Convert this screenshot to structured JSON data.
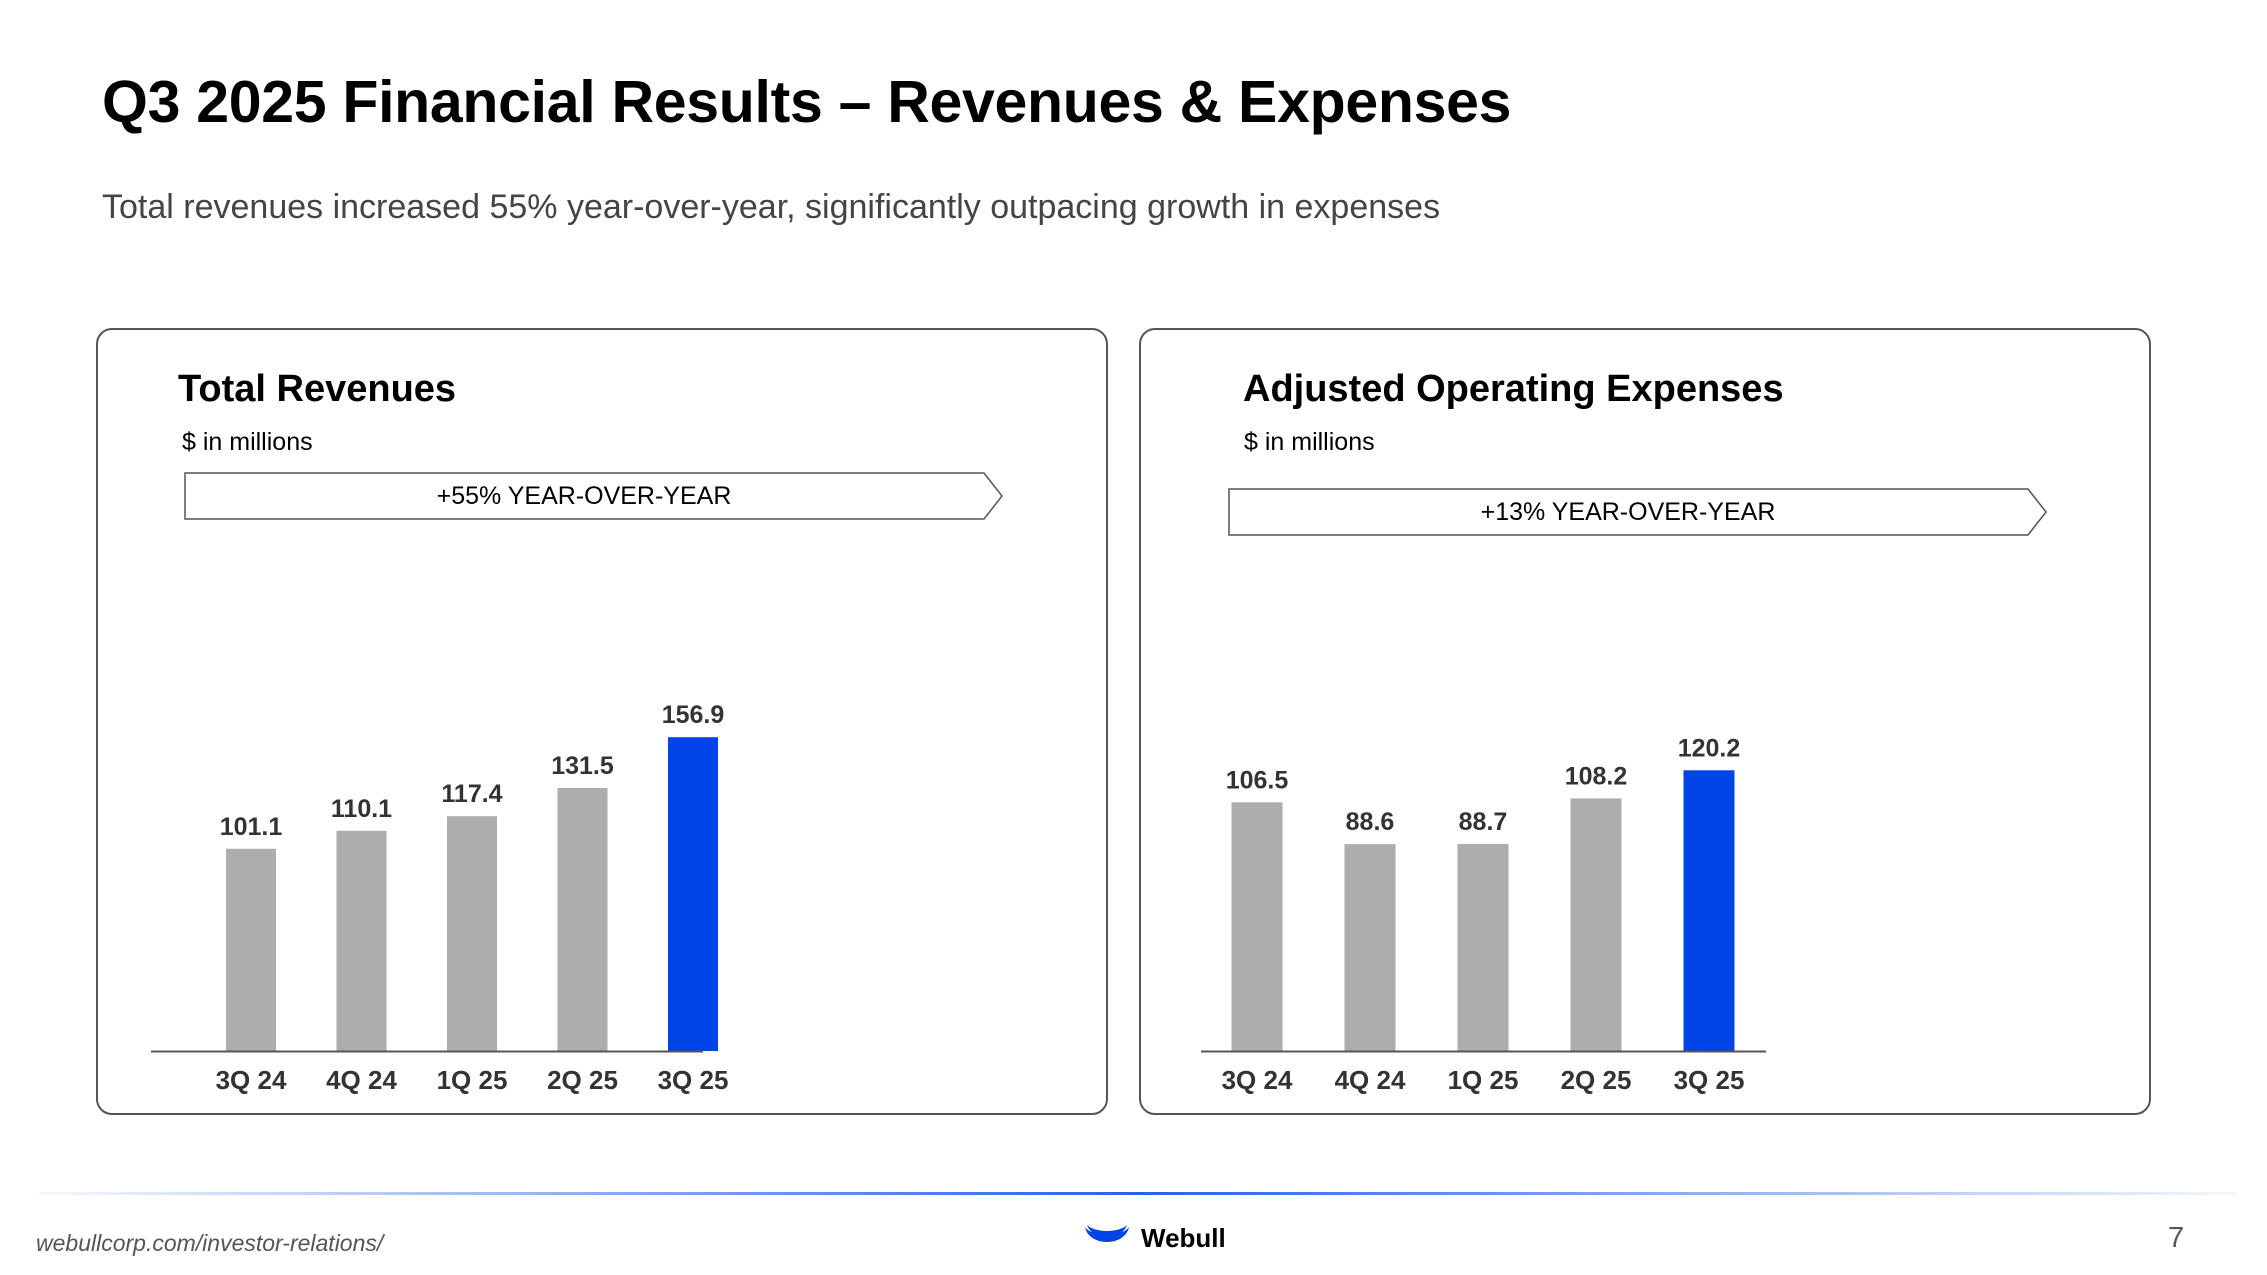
{
  "title": "Q3 2025 Financial Results – Revenues & Expenses",
  "subtitle": "Total revenues increased 55% year-over-year, significantly outpacing growth in expenses",
  "colors": {
    "bar_default": "#adadad",
    "bar_highlight": "#0043e6",
    "accent_line": "#2563eb",
    "logo": "#0043e6"
  },
  "chart_data": [
    {
      "type": "bar",
      "title": "Total Revenues",
      "unit_label": "$ in millions",
      "growth_label": "+55% YEAR-OVER-YEAR",
      "categories": [
        "3Q 24",
        "4Q 24",
        "1Q 25",
        "2Q 25",
        "3Q 25"
      ],
      "values": [
        101.1,
        110.1,
        117.4,
        131.5,
        156.9
      ],
      "value_labels": [
        "101.1",
        "110.1",
        "117.4",
        "131.5",
        "156.9"
      ],
      "highlight_index": 4,
      "xlabel": "",
      "ylabel": "",
      "ylim": [
        0,
        160
      ],
      "grid": false
    },
    {
      "type": "bar",
      "title": "Adjusted Operating Expenses",
      "unit_label": "$ in millions",
      "growth_label": "+13% YEAR-OVER-YEAR",
      "categories": [
        "3Q 24",
        "4Q 24",
        "1Q 25",
        "2Q 25",
        "3Q 25"
      ],
      "values": [
        106.5,
        88.6,
        88.7,
        108.2,
        120.2
      ],
      "value_labels": [
        "106.5",
        "88.6",
        "88.7",
        "108.2",
        "120.2"
      ],
      "highlight_index": 4,
      "xlabel": "",
      "ylabel": "",
      "ylim": [
        0,
        125
      ],
      "grid": false
    }
  ],
  "footer": {
    "url": "webullcorp.com/investor-relations/",
    "logo_text": "Webull",
    "page_number": "7"
  }
}
